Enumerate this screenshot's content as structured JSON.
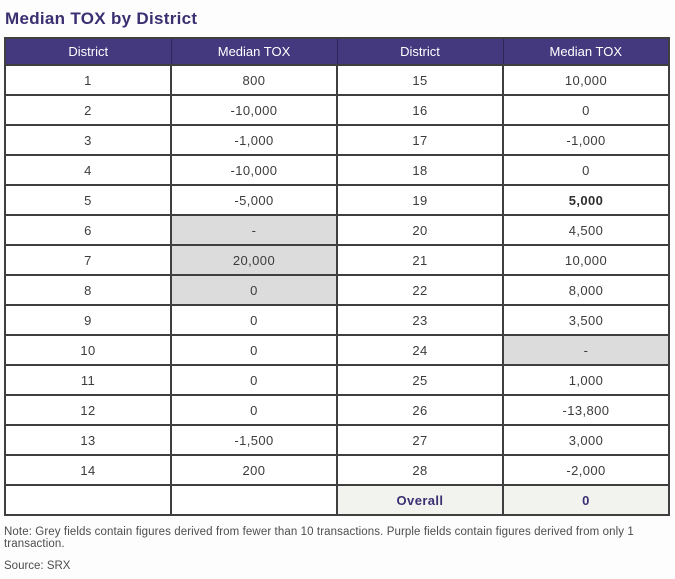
{
  "title": "Median TOX by District",
  "colors": {
    "header_bg": "#44397e",
    "header_text": "#ffffff",
    "title_purple": "#3b2f72",
    "grey_cell": "#dcdcdc",
    "overall_row_bg": "#f2f2ef",
    "border": "#3f3f3f"
  },
  "table": {
    "headers": [
      "District",
      "Median TOX",
      "District",
      "Median TOX"
    ],
    "rows": [
      [
        {
          "text": "1"
        },
        {
          "text": "800"
        },
        {
          "text": "15"
        },
        {
          "text": "10,000"
        }
      ],
      [
        {
          "text": "2"
        },
        {
          "text": "-10,000"
        },
        {
          "text": "16"
        },
        {
          "text": "0"
        }
      ],
      [
        {
          "text": "3"
        },
        {
          "text": "-1,000"
        },
        {
          "text": "17"
        },
        {
          "text": "-1,000"
        }
      ],
      [
        {
          "text": "4"
        },
        {
          "text": "-10,000"
        },
        {
          "text": "18"
        },
        {
          "text": "0"
        }
      ],
      [
        {
          "text": "5"
        },
        {
          "text": "-5,000"
        },
        {
          "text": "19"
        },
        {
          "text": "5,000",
          "style": "emph"
        }
      ],
      [
        {
          "text": "6"
        },
        {
          "text": "-",
          "style": "grey"
        },
        {
          "text": "20"
        },
        {
          "text": "4,500"
        }
      ],
      [
        {
          "text": "7"
        },
        {
          "text": "20,000",
          "style": "grey"
        },
        {
          "text": "21"
        },
        {
          "text": "10,000"
        }
      ],
      [
        {
          "text": "8"
        },
        {
          "text": "0",
          "style": "grey"
        },
        {
          "text": "22"
        },
        {
          "text": "8,000"
        }
      ],
      [
        {
          "text": "9"
        },
        {
          "text": "0"
        },
        {
          "text": "23"
        },
        {
          "text": "3,500"
        }
      ],
      [
        {
          "text": "10"
        },
        {
          "text": "0"
        },
        {
          "text": "24"
        },
        {
          "text": "-",
          "style": "grey"
        }
      ],
      [
        {
          "text": "11"
        },
        {
          "text": "0"
        },
        {
          "text": "25"
        },
        {
          "text": "1,000"
        }
      ],
      [
        {
          "text": "12"
        },
        {
          "text": "0"
        },
        {
          "text": "26"
        },
        {
          "text": "-13,800"
        }
      ],
      [
        {
          "text": "13"
        },
        {
          "text": "-1,500"
        },
        {
          "text": "27"
        },
        {
          "text": "3,000"
        }
      ],
      [
        {
          "text": "14"
        },
        {
          "text": "200"
        },
        {
          "text": "28"
        },
        {
          "text": "-2,000"
        }
      ],
      [
        {
          "text": ""
        },
        {
          "text": ""
        },
        {
          "text": "Overall",
          "style": "overall"
        },
        {
          "text": "0",
          "style": "overall"
        }
      ]
    ]
  },
  "note": "Note: Grey fields contain figures derived from fewer than 10 transactions. Purple fields contain figures derived from only 1 transaction.",
  "source": "Source: SRX"
}
